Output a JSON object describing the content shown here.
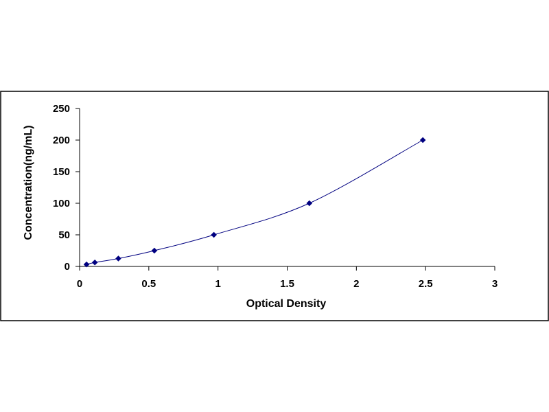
{
  "chart_data": {
    "type": "scatter",
    "title": "",
    "xlabel": "Optical Density",
    "ylabel": "Concentration(ng/mL)",
    "xlim": [
      0,
      3
    ],
    "ylim": [
      0,
      250
    ],
    "x_ticks": [
      0,
      0.5,
      1,
      1.5,
      2,
      2.5,
      3
    ],
    "x_tick_labels": [
      "0",
      "0.5",
      "1",
      "1.5",
      "2",
      "2.5",
      "3"
    ],
    "y_ticks": [
      0,
      50,
      100,
      150,
      200,
      250
    ],
    "y_tick_labels": [
      "0",
      "50",
      "100",
      "150",
      "200",
      "250"
    ],
    "grid": false,
    "legend": "none",
    "marker": "diamond",
    "trendline": "smooth curve",
    "series": [
      {
        "x": [
          0.05,
          0.11,
          0.28,
          0.54,
          0.97,
          1.66,
          2.48
        ],
        "y": [
          3.12,
          6.25,
          12.5,
          25,
          50,
          100,
          200
        ],
        "color": "#000080"
      }
    ]
  }
}
